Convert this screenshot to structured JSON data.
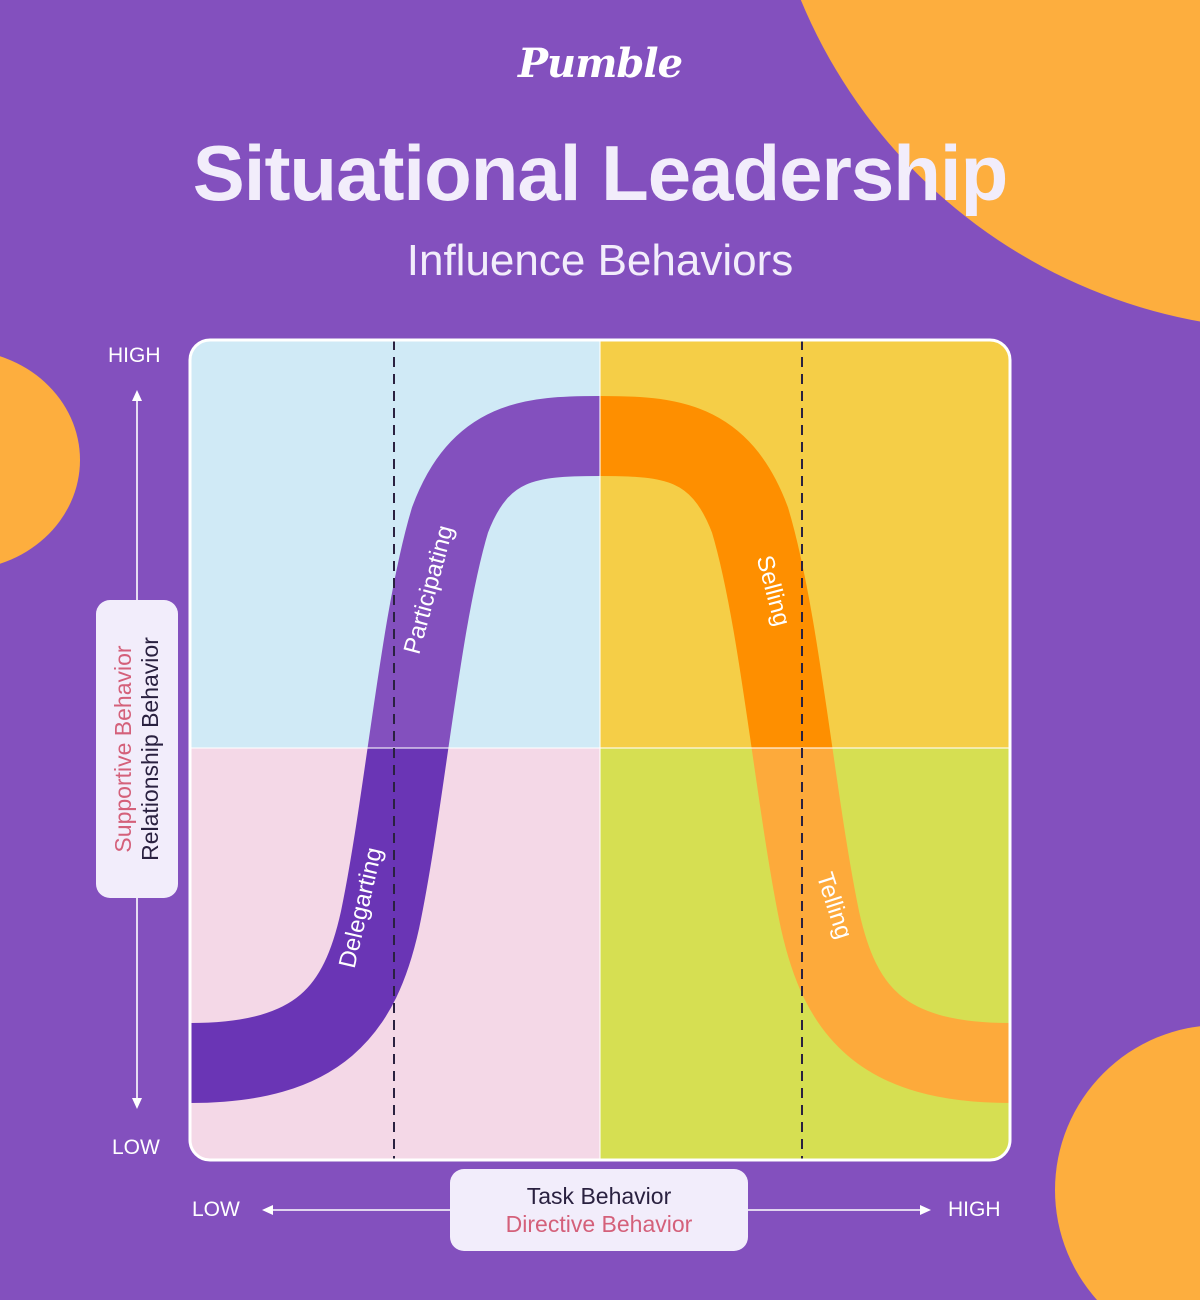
{
  "brand": {
    "logo_text": "Pumble"
  },
  "header": {
    "title": "Situational Leadership",
    "subtitle": "Influence Behaviors"
  },
  "y_axis": {
    "high": "HIGH",
    "low": "LOW",
    "label_pink": "Supportive Behavior",
    "label_dark": "Relationship Behavior"
  },
  "x_axis": {
    "low": "LOW",
    "high": "HIGH",
    "label_dark": "Task Behavior",
    "label_pink": "Directive Behavior"
  },
  "curve_labels": {
    "delegating": "Delegarting",
    "participating": "Participating",
    "selling": "Selling",
    "telling": "Telling"
  },
  "colors": {
    "background": "#8350BE",
    "accent_orange": "#FDAE3E",
    "quadrant_top_left": "#D0EAF6",
    "quadrant_top_right": "#F5CE47",
    "quadrant_bottom_left": "#F4D8E7",
    "quadrant_bottom_right": "#D6DF52",
    "curve_purple": "#8350BE",
    "curve_purple_dark": "#6A35B5",
    "curve_orange": "#FE8F00",
    "curve_orange_light": "#FDAA3B"
  }
}
